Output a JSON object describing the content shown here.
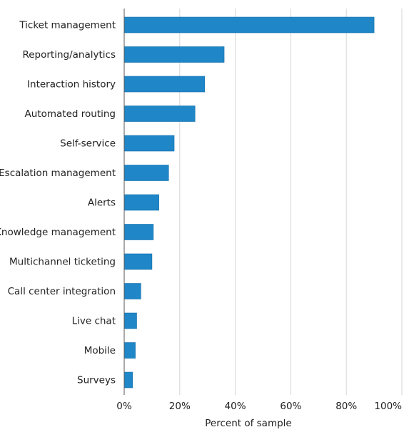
{
  "chart_data": {
    "type": "bar",
    "orientation": "horizontal",
    "categories": [
      "Ticket management",
      "Reporting/analytics",
      "Interaction history",
      "Automated routing",
      "Self-service",
      "Escalation management",
      "Alerts",
      "Knowledge management",
      "Multichannel ticketing",
      "Call center integration",
      "Live chat",
      "Mobile",
      "Surveys"
    ],
    "values": [
      90,
      36,
      29,
      25.5,
      18,
      16,
      12.5,
      10.5,
      10,
      6,
      4.5,
      4,
      3
    ],
    "xlabel": "Percent of sample",
    "ylabel": "",
    "xlim": [
      0,
      100
    ],
    "x_ticks": [
      "0%",
      "20%",
      "40%",
      "60%",
      "80%",
      "100%"
    ],
    "x_tick_values": [
      0,
      20,
      40,
      60,
      80,
      100
    ],
    "grid": "vertical",
    "legend": "none",
    "colors": {
      "bar": "#1f86c8",
      "bar_stroke": "#1570ab"
    }
  }
}
